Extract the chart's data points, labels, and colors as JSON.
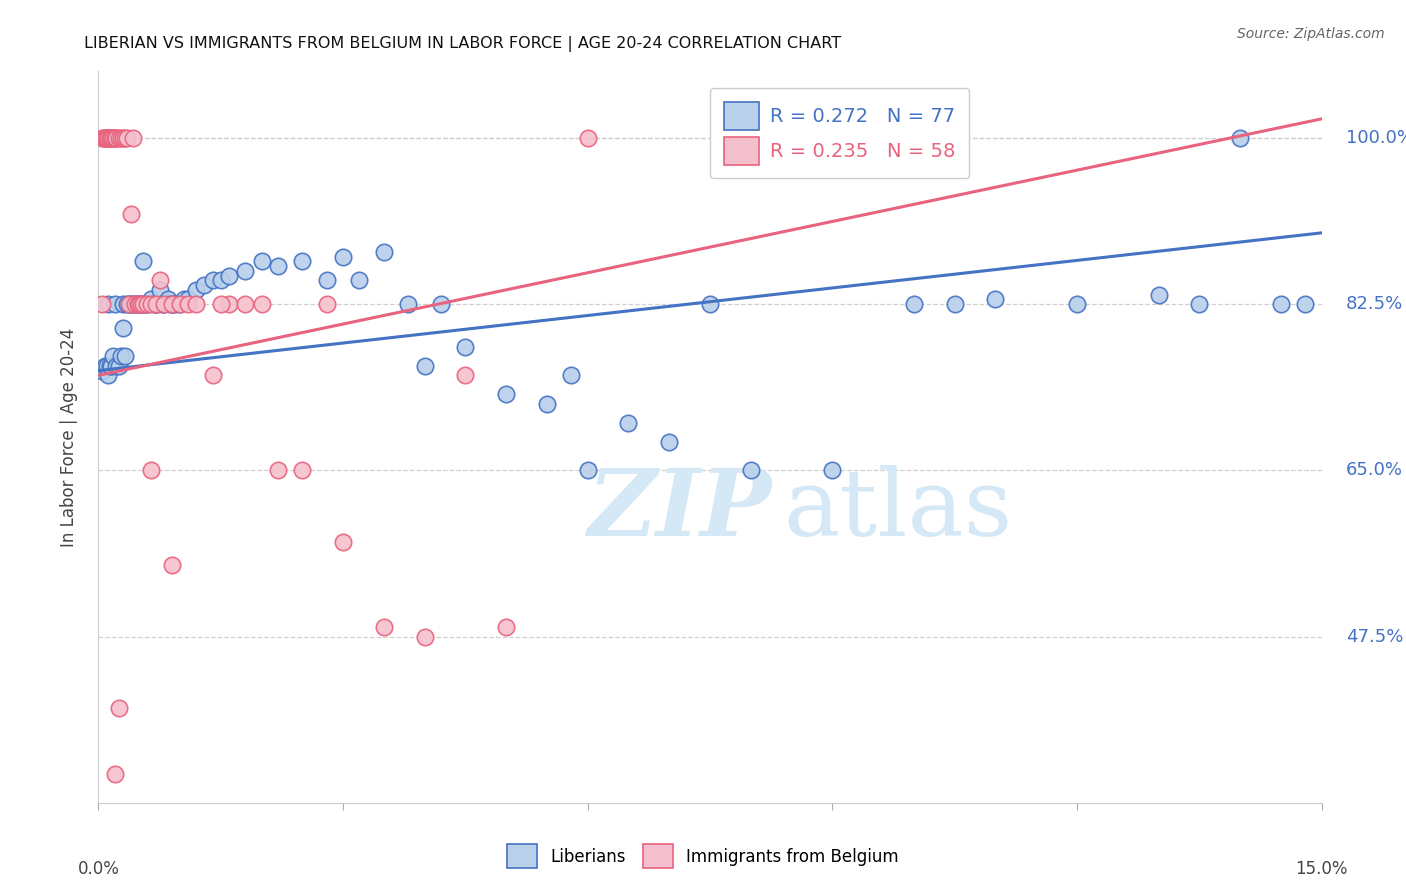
{
  "title": "LIBERIAN VS IMMIGRANTS FROM BELGIUM IN LABOR FORCE | AGE 20-24 CORRELATION CHART",
  "source": "Source: ZipAtlas.com",
  "ylabel": "In Labor Force | Age 20-24",
  "xlim": [
    0.0,
    15.0
  ],
  "ylim": [
    30.0,
    107.0
  ],
  "ytick_vals": [
    47.5,
    65.0,
    82.5,
    100.0
  ],
  "legend_blue_r": "R = 0.272",
  "legend_blue_n": "N = 77",
  "legend_pink_r": "R = 0.235",
  "legend_pink_n": "N = 58",
  "blue_fill": "#b8d0ea",
  "blue_edge": "#4472c4",
  "pink_fill": "#f5c0ce",
  "pink_edge": "#e8637d",
  "blue_line": "#4472c4",
  "pink_line": "#e8637d",
  "grid_color": "#d0d0d0",
  "right_label_color": "#4472c4",
  "watermark_color": "#d5e8f5",
  "blue_x": [
    0.05,
    0.08,
    0.1,
    0.12,
    0.12,
    0.14,
    0.15,
    0.18,
    0.2,
    0.22,
    0.25,
    0.28,
    0.3,
    0.3,
    0.32,
    0.35,
    0.38,
    0.4,
    0.42,
    0.45,
    0.48,
    0.5,
    0.52,
    0.55,
    0.55,
    0.58,
    0.6,
    0.65,
    0.68,
    0.7,
    0.72,
    0.75,
    0.78,
    0.8,
    0.85,
    0.88,
    0.9,
    0.92,
    0.95,
    1.0,
    1.05,
    1.1,
    1.2,
    1.3,
    1.4,
    1.5,
    1.6,
    1.8,
    2.0,
    2.2,
    2.5,
    2.8,
    3.0,
    3.2,
    3.5,
    4.0,
    4.5,
    5.0,
    5.5,
    6.0,
    6.5,
    7.0,
    8.0,
    9.0,
    10.0,
    11.0,
    12.0,
    13.0,
    14.0,
    14.5,
    14.8,
    3.8,
    4.2,
    5.8,
    7.5,
    10.5,
    13.5
  ],
  "blue_y": [
    75.5,
    76.0,
    76.0,
    75.0,
    82.5,
    76.0,
    76.0,
    77.0,
    82.5,
    76.0,
    76.0,
    77.0,
    80.0,
    82.5,
    77.0,
    82.5,
    82.5,
    82.5,
    82.5,
    82.5,
    82.5,
    82.5,
    82.5,
    82.5,
    87.0,
    82.5,
    82.5,
    83.0,
    82.5,
    82.5,
    82.5,
    84.0,
    82.5,
    82.5,
    83.0,
    82.5,
    82.5,
    82.5,
    82.5,
    82.5,
    83.0,
    83.0,
    84.0,
    84.5,
    85.0,
    85.0,
    85.5,
    86.0,
    87.0,
    86.5,
    87.0,
    85.0,
    87.5,
    85.0,
    88.0,
    76.0,
    78.0,
    73.0,
    72.0,
    65.0,
    70.0,
    68.0,
    65.0,
    65.0,
    82.5,
    83.0,
    82.5,
    83.5,
    100.0,
    82.5,
    82.5,
    82.5,
    82.5,
    75.0,
    82.5,
    82.5,
    82.5
  ],
  "pink_x": [
    0.04,
    0.05,
    0.07,
    0.08,
    0.08,
    0.1,
    0.1,
    0.12,
    0.12,
    0.14,
    0.15,
    0.15,
    0.15,
    0.18,
    0.18,
    0.2,
    0.22,
    0.22,
    0.25,
    0.28,
    0.3,
    0.32,
    0.35,
    0.38,
    0.4,
    0.42,
    0.45,
    0.48,
    0.5,
    0.52,
    0.55,
    0.6,
    0.65,
    0.7,
    0.75,
    0.8,
    0.9,
    1.0,
    1.1,
    1.2,
    1.4,
    1.6,
    1.8,
    2.0,
    2.2,
    2.5,
    2.8,
    3.5,
    4.0,
    4.5,
    0.65,
    0.9,
    1.5,
    3.0,
    5.0,
    6.0,
    0.2,
    0.25
  ],
  "pink_y": [
    100.0,
    82.5,
    100.0,
    100.0,
    100.0,
    100.0,
    100.0,
    100.0,
    100.0,
    100.0,
    100.0,
    100.0,
    100.0,
    100.0,
    100.0,
    100.0,
    100.0,
    100.0,
    100.0,
    100.0,
    100.0,
    100.0,
    100.0,
    82.5,
    92.0,
    100.0,
    82.5,
    82.5,
    82.5,
    82.5,
    82.5,
    82.5,
    82.5,
    82.5,
    85.0,
    82.5,
    82.5,
    82.5,
    82.5,
    82.5,
    75.0,
    82.5,
    82.5,
    82.5,
    65.0,
    65.0,
    82.5,
    48.5,
    47.5,
    75.0,
    65.0,
    55.0,
    82.5,
    57.5,
    48.5,
    100.0,
    33.0,
    40.0
  ],
  "blue_line_x0": 0.0,
  "blue_line_y0": 75.5,
  "blue_line_x1": 15.0,
  "blue_line_y1": 90.0,
  "pink_line_x0": 0.0,
  "pink_line_y0": 75.0,
  "pink_line_x1": 15.0,
  "pink_line_y1": 102.0
}
